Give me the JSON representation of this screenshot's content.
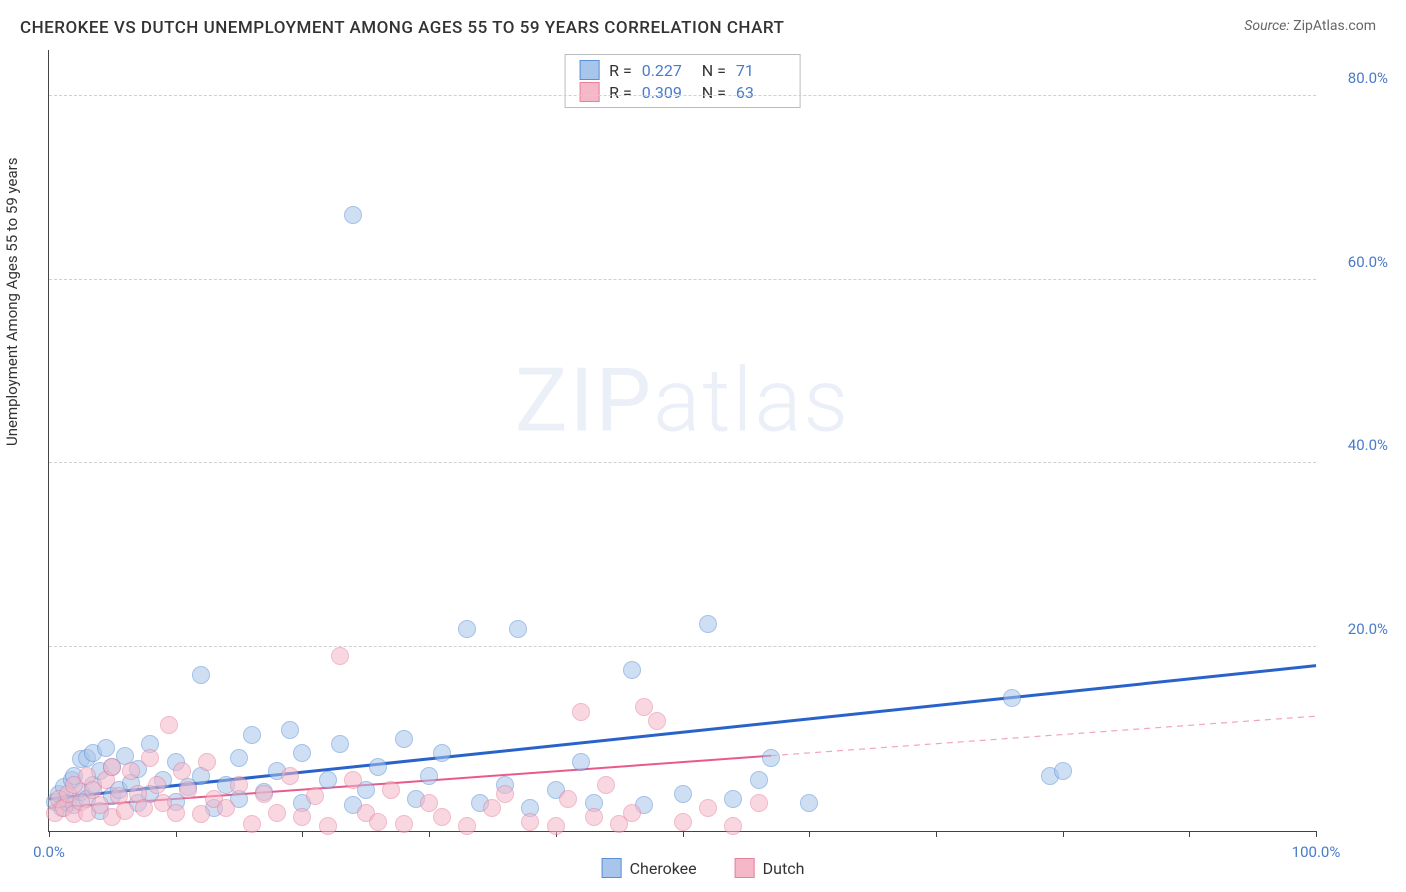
{
  "title": "CHEROKEE VS DUTCH UNEMPLOYMENT AMONG AGES 55 TO 59 YEARS CORRELATION CHART",
  "source_label": "Source:",
  "source_value": "ZipAtlas.com",
  "ylabel": "Unemployment Among Ages 55 to 59 years",
  "watermark_bold": "ZIP",
  "watermark_rest": "atlas",
  "chart": {
    "type": "scatter",
    "xlim": [
      0,
      100
    ],
    "ylim": [
      0,
      85
    ],
    "x_ticks": [
      0,
      10,
      20,
      30,
      40,
      50,
      60,
      70,
      80,
      90,
      100
    ],
    "x_tick_labels": {
      "0": "0.0%",
      "100": "100.0%"
    },
    "y_gridlines": [
      20,
      40,
      60,
      80
    ],
    "y_tick_labels": {
      "20": "20.0%",
      "40": "40.0%",
      "60": "60.0%",
      "80": "80.0%"
    },
    "background_color": "#ffffff",
    "grid_color": "#d0d0d0",
    "axis_color": "#444444",
    "tick_label_color": "#4a7bc8",
    "marker_radius": 9,
    "marker_opacity": 0.55,
    "series": [
      {
        "name": "Cherokee",
        "fill_color": "#a8c5eb",
        "stroke_color": "#5a8fd6",
        "r_value": "0.227",
        "n_value": "71",
        "trend": {
          "x1": 0,
          "y1": 3.5,
          "x2": 100,
          "y2": 18.0,
          "solid_until_x": 100,
          "color": "#2962c9",
          "width": 3
        },
        "points": [
          [
            0.5,
            3.2
          ],
          [
            0.8,
            4.0
          ],
          [
            1.0,
            2.5
          ],
          [
            1.2,
            4.8
          ],
          [
            1.5,
            3.0
          ],
          [
            1.8,
            5.5
          ],
          [
            2.0,
            2.8
          ],
          [
            2.0,
            6.0
          ],
          [
            2.5,
            4.2
          ],
          [
            2.5,
            7.8
          ],
          [
            3.0,
            3.5
          ],
          [
            3.0,
            8.0
          ],
          [
            3.5,
            5.0
          ],
          [
            3.5,
            8.5
          ],
          [
            4.0,
            2.2
          ],
          [
            4.0,
            6.5
          ],
          [
            4.5,
            9.0
          ],
          [
            5.0,
            3.8
          ],
          [
            5.0,
            7.0
          ],
          [
            5.5,
            4.5
          ],
          [
            6.0,
            8.2
          ],
          [
            6.5,
            5.2
          ],
          [
            7.0,
            3.0
          ],
          [
            7.0,
            6.8
          ],
          [
            8.0,
            4.0
          ],
          [
            8.0,
            9.5
          ],
          [
            9.0,
            5.5
          ],
          [
            10.0,
            3.2
          ],
          [
            10.0,
            7.5
          ],
          [
            11.0,
            4.8
          ],
          [
            12.0,
            17.0
          ],
          [
            12.0,
            6.0
          ],
          [
            13.0,
            2.5
          ],
          [
            14.0,
            5.0
          ],
          [
            15.0,
            8.0
          ],
          [
            15.0,
            3.5
          ],
          [
            16.0,
            10.5
          ],
          [
            17.0,
            4.2
          ],
          [
            18.0,
            6.5
          ],
          [
            19.0,
            11.0
          ],
          [
            20.0,
            3.0
          ],
          [
            20.0,
            8.5
          ],
          [
            22.0,
            5.5
          ],
          [
            23.0,
            9.5
          ],
          [
            24.0,
            2.8
          ],
          [
            24.0,
            67.0
          ],
          [
            25.0,
            4.5
          ],
          [
            26.0,
            7.0
          ],
          [
            28.0,
            10.0
          ],
          [
            29.0,
            3.5
          ],
          [
            30.0,
            6.0
          ],
          [
            31.0,
            8.5
          ],
          [
            33.0,
            22.0
          ],
          [
            34.0,
            3.0
          ],
          [
            36.0,
            5.0
          ],
          [
            37.0,
            22.0
          ],
          [
            38.0,
            2.5
          ],
          [
            40.0,
            4.5
          ],
          [
            42.0,
            7.5
          ],
          [
            43.0,
            3.0
          ],
          [
            46.0,
            17.5
          ],
          [
            47.0,
            2.8
          ],
          [
            50.0,
            4.0
          ],
          [
            52.0,
            22.5
          ],
          [
            54.0,
            3.5
          ],
          [
            56.0,
            5.5
          ],
          [
            57.0,
            8.0
          ],
          [
            60.0,
            3.0
          ],
          [
            76.0,
            14.5
          ],
          [
            79.0,
            6.0
          ],
          [
            80.0,
            6.5
          ]
        ]
      },
      {
        "name": "Dutch",
        "fill_color": "#f5b8c8",
        "stroke_color": "#e6809c",
        "r_value": "0.309",
        "n_value": "63",
        "trend": {
          "x1": 0,
          "y1": 2.5,
          "x2": 100,
          "y2": 12.5,
          "solid_until_x": 57,
          "color": "#e85a8a",
          "width": 2
        },
        "points": [
          [
            0.5,
            2.0
          ],
          [
            0.8,
            3.5
          ],
          [
            1.2,
            2.5
          ],
          [
            1.5,
            4.0
          ],
          [
            2.0,
            1.8
          ],
          [
            2.0,
            5.0
          ],
          [
            2.5,
            3.2
          ],
          [
            3.0,
            2.0
          ],
          [
            3.0,
            6.0
          ],
          [
            3.5,
            4.5
          ],
          [
            4.0,
            2.8
          ],
          [
            4.5,
            5.5
          ],
          [
            5.0,
            1.5
          ],
          [
            5.0,
            7.0
          ],
          [
            5.5,
            3.8
          ],
          [
            6.0,
            2.2
          ],
          [
            6.5,
            6.5
          ],
          [
            7.0,
            4.0
          ],
          [
            7.5,
            2.5
          ],
          [
            8.0,
            8.0
          ],
          [
            8.5,
            5.0
          ],
          [
            9.0,
            3.0
          ],
          [
            9.5,
            11.5
          ],
          [
            10.0,
            2.0
          ],
          [
            10.5,
            6.5
          ],
          [
            11.0,
            4.5
          ],
          [
            12.0,
            1.8
          ],
          [
            12.5,
            7.5
          ],
          [
            13.0,
            3.5
          ],
          [
            14.0,
            2.5
          ],
          [
            15.0,
            5.0
          ],
          [
            16.0,
            0.8
          ],
          [
            17.0,
            4.0
          ],
          [
            18.0,
            2.0
          ],
          [
            19.0,
            6.0
          ],
          [
            20.0,
            1.5
          ],
          [
            21.0,
            3.8
          ],
          [
            22.0,
            0.5
          ],
          [
            23.0,
            19.0
          ],
          [
            24.0,
            5.5
          ],
          [
            25.0,
            2.0
          ],
          [
            26.0,
            1.0
          ],
          [
            27.0,
            4.5
          ],
          [
            28.0,
            0.8
          ],
          [
            30.0,
            3.0
          ],
          [
            31.0,
            1.5
          ],
          [
            33.0,
            0.5
          ],
          [
            35.0,
            2.5
          ],
          [
            36.0,
            4.0
          ],
          [
            38.0,
            1.0
          ],
          [
            40.0,
            0.5
          ],
          [
            41.0,
            3.5
          ],
          [
            42.0,
            13.0
          ],
          [
            43.0,
            1.5
          ],
          [
            44.0,
            5.0
          ],
          [
            45.0,
            0.8
          ],
          [
            46.0,
            2.0
          ],
          [
            47.0,
            13.5
          ],
          [
            48.0,
            12.0
          ],
          [
            50.0,
            1.0
          ],
          [
            52.0,
            2.5
          ],
          [
            54.0,
            0.5
          ],
          [
            56.0,
            3.0
          ]
        ]
      }
    ]
  },
  "legend": {
    "items": [
      {
        "label": "Cherokee",
        "fill": "#a8c5eb",
        "stroke": "#5a8fd6"
      },
      {
        "label": "Dutch",
        "fill": "#f5b8c8",
        "stroke": "#e6809c"
      }
    ]
  }
}
